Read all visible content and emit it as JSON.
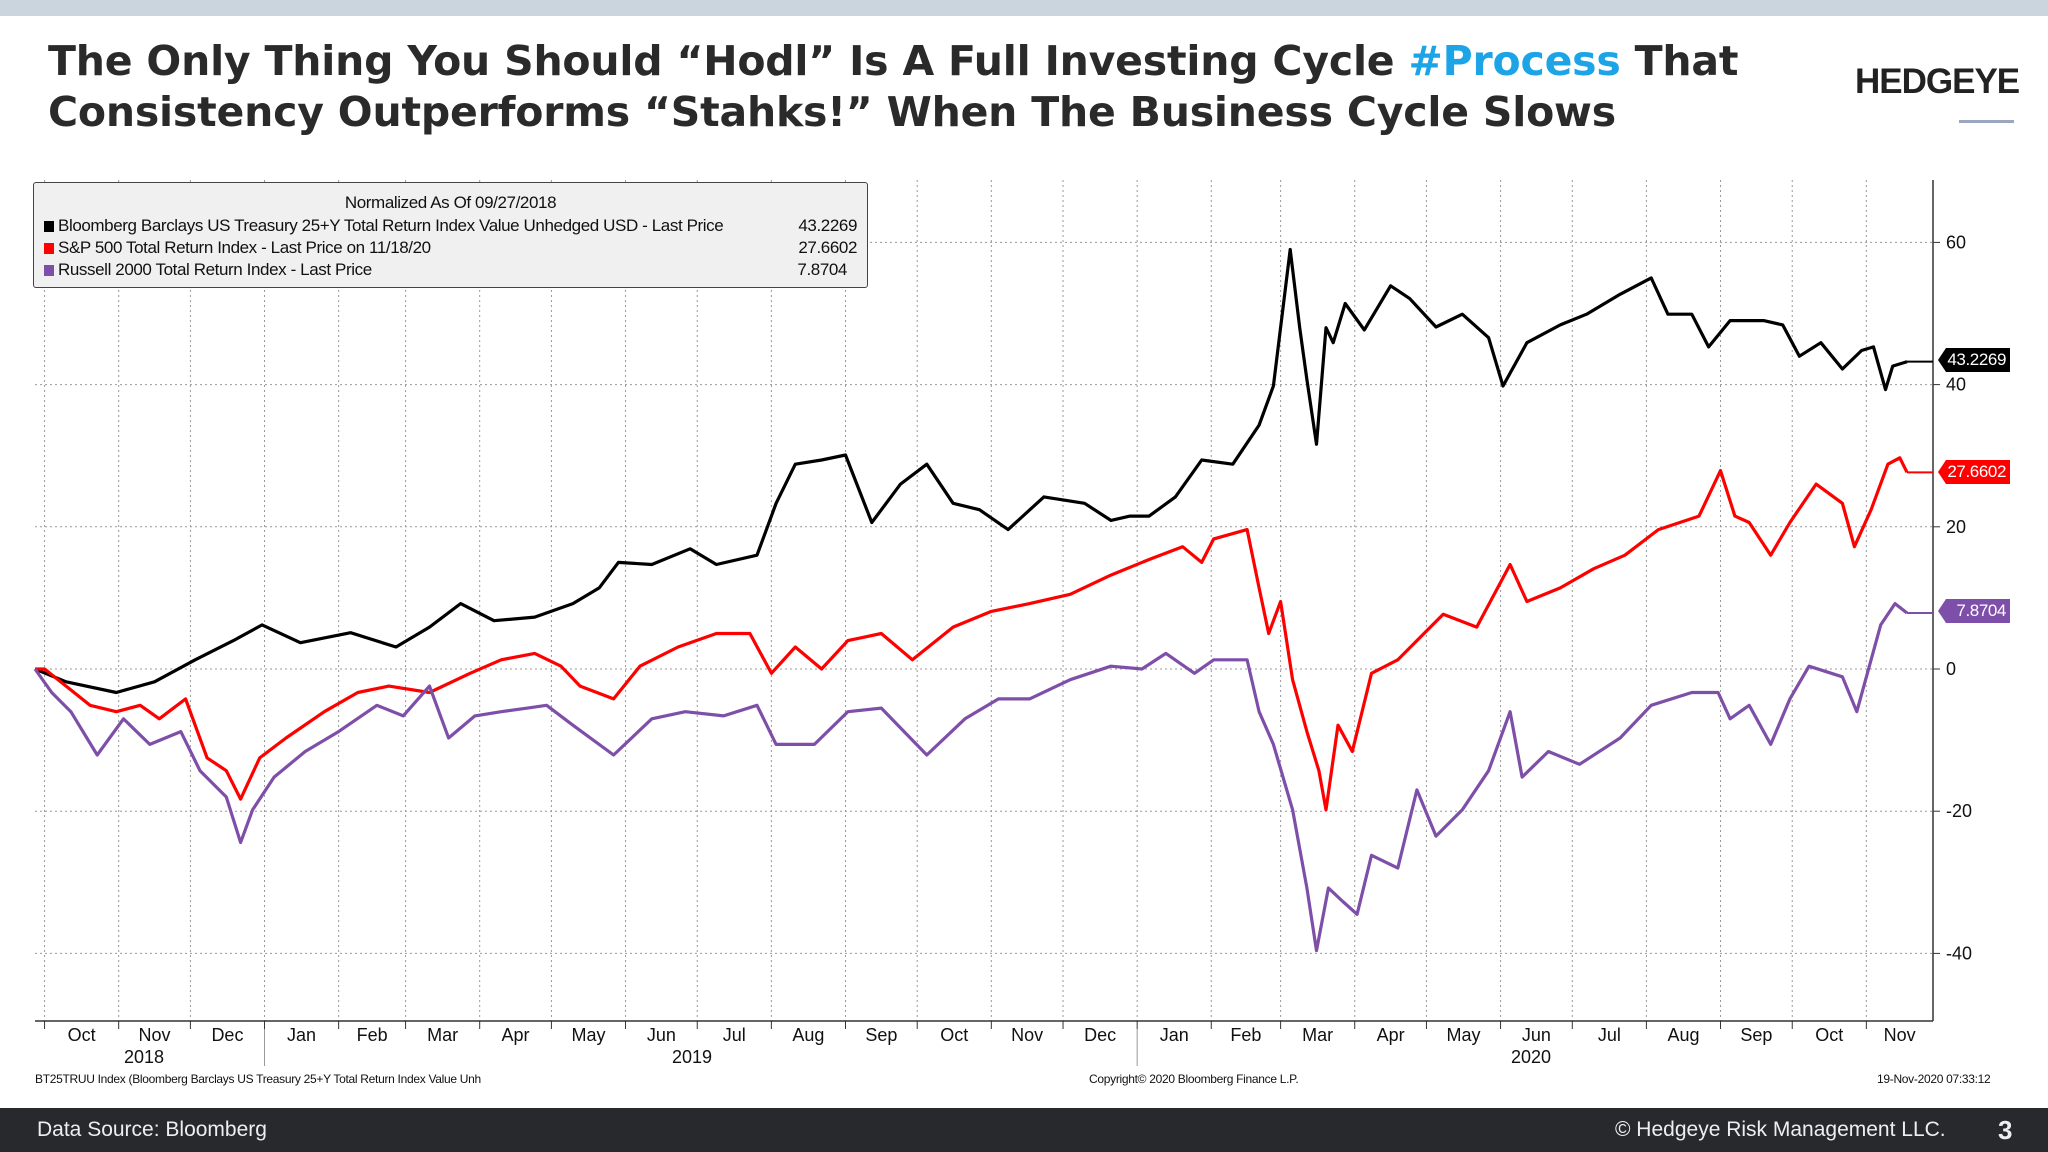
{
  "header": {
    "title_line1_a": "The Only Thing You Should “Hodl” Is A Full Investing Cycle ",
    "title_line1_hashtag": "#Process",
    "title_line1_b": " That",
    "title_line2": "Consistency Outperforms “Stahks!” When The Business Cycle Slows",
    "logo": "HEDGEYE",
    "accent_color": "#1ca4e6"
  },
  "chart_data": {
    "type": "line",
    "legend_title": "Normalized As Of 09/27/2018",
    "legend_placement": "top-left",
    "grid": true,
    "x_range": [
      "2018-09-27",
      "2020-11-18"
    ],
    "ylim": [
      -48,
      70
    ],
    "y_ticks": [
      -40,
      -20,
      0,
      20,
      40,
      60
    ],
    "x_month_labels": [
      {
        "label": "Oct",
        "month": "2018-10"
      },
      {
        "label": "Nov",
        "month": "2018-11"
      },
      {
        "label": "Dec",
        "month": "2018-12"
      },
      {
        "label": "Jan",
        "month": "2019-01"
      },
      {
        "label": "Feb",
        "month": "2019-02"
      },
      {
        "label": "Mar",
        "month": "2019-03"
      },
      {
        "label": "Apr",
        "month": "2019-04"
      },
      {
        "label": "May",
        "month": "2019-05"
      },
      {
        "label": "Jun",
        "month": "2019-06"
      },
      {
        "label": "Jul",
        "month": "2019-07"
      },
      {
        "label": "Aug",
        "month": "2019-08"
      },
      {
        "label": "Sep",
        "month": "2019-09"
      },
      {
        "label": "Oct",
        "month": "2019-10"
      },
      {
        "label": "Nov",
        "month": "2019-11"
      },
      {
        "label": "Dec",
        "month": "2019-12"
      },
      {
        "label": "Jan",
        "month": "2020-01"
      },
      {
        "label": "Feb",
        "month": "2020-02"
      },
      {
        "label": "Mar",
        "month": "2020-03"
      },
      {
        "label": "Apr",
        "month": "2020-04"
      },
      {
        "label": "May",
        "month": "2020-05"
      },
      {
        "label": "Jun",
        "month": "2020-06"
      },
      {
        "label": "Jul",
        "month": "2020-07"
      },
      {
        "label": "Aug",
        "month": "2020-08"
      },
      {
        "label": "Sep",
        "month": "2020-09"
      },
      {
        "label": "Oct",
        "month": "2020-10"
      },
      {
        "label": "Nov",
        "month": "2020-11"
      }
    ],
    "x_year_labels": [
      "2018",
      "2019",
      "2020"
    ],
    "series": [
      {
        "name": "Bloomberg Barclays US Treasury 25+Y Total Return Index Value Unhedged USD - Last Price",
        "last_value": "43.2269",
        "color": "#000000",
        "points": [
          [
            "2018-09-27",
            0
          ],
          [
            "2018-10-10",
            -1.8
          ],
          [
            "2018-10-31",
            -3.3
          ],
          [
            "2018-11-16",
            -1.8
          ],
          [
            "2018-12-03",
            1.3
          ],
          [
            "2018-12-19",
            4
          ],
          [
            "2018-12-31",
            6.2
          ],
          [
            "2019-01-16",
            3.7
          ],
          [
            "2019-02-06",
            5.1
          ],
          [
            "2019-02-25",
            3.1
          ],
          [
            "2019-03-11",
            5.9
          ],
          [
            "2019-03-24",
            9.2
          ],
          [
            "2019-04-07",
            6.8
          ],
          [
            "2019-04-24",
            7.3
          ],
          [
            "2019-05-10",
            9.2
          ],
          [
            "2019-05-21",
            11.4
          ],
          [
            "2019-05-29",
            15
          ],
          [
            "2019-06-12",
            14.7
          ],
          [
            "2019-06-28",
            16.9
          ],
          [
            "2019-07-09",
            14.7
          ],
          [
            "2019-07-26",
            16
          ],
          [
            "2019-08-03",
            23.3
          ],
          [
            "2019-08-11",
            28.8
          ],
          [
            "2019-08-22",
            29.4
          ],
          [
            "2019-09-01",
            30.1
          ],
          [
            "2019-09-12",
            20.6
          ],
          [
            "2019-09-24",
            26
          ],
          [
            "2019-10-05",
            28.8
          ],
          [
            "2019-10-16",
            23.3
          ],
          [
            "2019-10-27",
            22.4
          ],
          [
            "2019-11-08",
            19.6
          ],
          [
            "2019-11-23",
            24.2
          ],
          [
            "2019-12-10",
            23.3
          ],
          [
            "2019-12-21",
            20.9
          ],
          [
            "2019-12-29",
            21.5
          ],
          [
            "2020-01-06",
            21.5
          ],
          [
            "2020-01-17",
            24.2
          ],
          [
            "2020-01-28",
            29.4
          ],
          [
            "2020-02-10",
            28.8
          ],
          [
            "2020-02-21",
            34.3
          ],
          [
            "2020-02-27",
            39.8
          ],
          [
            "2020-03-05",
            59
          ],
          [
            "2020-03-09",
            48
          ],
          [
            "2020-03-12",
            40.7
          ],
          [
            "2020-03-16",
            31.6
          ],
          [
            "2020-03-20",
            48
          ],
          [
            "2020-03-23",
            45.9
          ],
          [
            "2020-03-28",
            51.4
          ],
          [
            "2020-04-05",
            47.7
          ],
          [
            "2020-04-16",
            53.9
          ],
          [
            "2020-04-24",
            52.1
          ],
          [
            "2020-05-05",
            48.1
          ],
          [
            "2020-05-16",
            49.9
          ],
          [
            "2020-05-27",
            46.6
          ],
          [
            "2020-06-02",
            39.8
          ],
          [
            "2020-06-12",
            45.9
          ],
          [
            "2020-06-26",
            48.4
          ],
          [
            "2020-07-07",
            49.9
          ],
          [
            "2020-07-21",
            52.7
          ],
          [
            "2020-08-03",
            55
          ],
          [
            "2020-08-10",
            49.9
          ],
          [
            "2020-08-20",
            49.9
          ],
          [
            "2020-08-27",
            45.3
          ],
          [
            "2020-09-05",
            49
          ],
          [
            "2020-09-19",
            49
          ],
          [
            "2020-09-27",
            48.4
          ],
          [
            "2020-10-04",
            44
          ],
          [
            "2020-10-13",
            45.9
          ],
          [
            "2020-10-22",
            42.2
          ],
          [
            "2020-10-30",
            44.8
          ],
          [
            "2020-11-04",
            45.3
          ],
          [
            "2020-11-09",
            39.3
          ],
          [
            "2020-11-12",
            42.6
          ],
          [
            "2020-11-18",
            43.2269
          ]
        ]
      },
      {
        "name": "S&P 500 Total Return Index - Last Price on 11/18/20",
        "last_value": "27.6602",
        "color": "#ff0000",
        "points": [
          [
            "2018-09-27",
            0
          ],
          [
            "2018-10-01",
            0
          ],
          [
            "2018-10-10",
            -2.4
          ],
          [
            "2018-10-20",
            -5.1
          ],
          [
            "2018-10-31",
            -6
          ],
          [
            "2018-11-10",
            -5.1
          ],
          [
            "2018-11-18",
            -7
          ],
          [
            "2018-11-29",
            -4.2
          ],
          [
            "2018-12-08",
            -12.5
          ],
          [
            "2018-12-16",
            -14.3
          ],
          [
            "2018-12-22",
            -18.3
          ],
          [
            "2018-12-30",
            -12.5
          ],
          [
            "2019-01-10",
            -9.7
          ],
          [
            "2019-01-26",
            -6
          ],
          [
            "2019-02-09",
            -3.3
          ],
          [
            "2019-02-22",
            -2.4
          ],
          [
            "2019-03-11",
            -3.3
          ],
          [
            "2019-03-28",
            -0.6
          ],
          [
            "2019-04-10",
            1.3
          ],
          [
            "2019-04-24",
            2.2
          ],
          [
            "2019-05-05",
            0.4
          ],
          [
            "2019-05-13",
            -2.4
          ],
          [
            "2019-05-27",
            -4.2
          ],
          [
            "2019-06-07",
            0.4
          ],
          [
            "2019-06-23",
            3.1
          ],
          [
            "2019-07-09",
            5
          ],
          [
            "2019-07-23",
            5
          ],
          [
            "2019-08-01",
            -0.6
          ],
          [
            "2019-08-11",
            3.1
          ],
          [
            "2019-08-22",
            0
          ],
          [
            "2019-09-02",
            4
          ],
          [
            "2019-09-16",
            5
          ],
          [
            "2019-09-29",
            1.3
          ],
          [
            "2019-10-16",
            5.9
          ],
          [
            "2019-11-01",
            8.1
          ],
          [
            "2019-11-17",
            9.2
          ],
          [
            "2019-12-04",
            10.5
          ],
          [
            "2019-12-21",
            13.2
          ],
          [
            "2020-01-06",
            15.4
          ],
          [
            "2020-01-20",
            17.2
          ],
          [
            "2020-01-28",
            15
          ],
          [
            "2020-02-02",
            18.3
          ],
          [
            "2020-02-16",
            19.6
          ],
          [
            "2020-02-21",
            11.4
          ],
          [
            "2020-02-25",
            5
          ],
          [
            "2020-03-01",
            9.5
          ],
          [
            "2020-03-06",
            -1.5
          ],
          [
            "2020-03-12",
            -8.8
          ],
          [
            "2020-03-17",
            -14.3
          ],
          [
            "2020-03-20",
            -19.8
          ],
          [
            "2020-03-25",
            -7.9
          ],
          [
            "2020-03-31",
            -11.6
          ],
          [
            "2020-04-08",
            -0.6
          ],
          [
            "2020-04-19",
            1.3
          ],
          [
            "2020-04-27",
            4
          ],
          [
            "2020-05-08",
            7.7
          ],
          [
            "2020-05-22",
            5.9
          ],
          [
            "2020-06-05",
            14.7
          ],
          [
            "2020-06-12",
            9.5
          ],
          [
            "2020-06-26",
            11.4
          ],
          [
            "2020-07-10",
            14.1
          ],
          [
            "2020-07-23",
            16
          ],
          [
            "2020-08-06",
            19.6
          ],
          [
            "2020-08-23",
            21.5
          ],
          [
            "2020-09-01",
            27.9
          ],
          [
            "2020-09-07",
            21.5
          ],
          [
            "2020-09-13",
            20.6
          ],
          [
            "2020-09-22",
            16
          ],
          [
            "2020-09-30",
            20.6
          ],
          [
            "2020-10-11",
            26
          ],
          [
            "2020-10-22",
            23.3
          ],
          [
            "2020-10-27",
            17.2
          ],
          [
            "2020-11-03",
            22.4
          ],
          [
            "2020-11-10",
            28.8
          ],
          [
            "2020-11-15",
            29.7
          ],
          [
            "2020-11-18",
            27.6602
          ]
        ]
      },
      {
        "name": "Russell 2000 Total Return Index - Last Price",
        "last_value": "7.8704",
        "color": "#7e4fa8",
        "points": [
          [
            "2018-09-27",
            0
          ],
          [
            "2018-10-04",
            -3.3
          ],
          [
            "2018-10-12",
            -6
          ],
          [
            "2018-10-23",
            -12.1
          ],
          [
            "2018-11-03",
            -7
          ],
          [
            "2018-11-14",
            -10.6
          ],
          [
            "2018-11-27",
            -8.8
          ],
          [
            "2018-12-05",
            -14.3
          ],
          [
            "2018-12-16",
            -18
          ],
          [
            "2018-12-22",
            -24.4
          ],
          [
            "2018-12-27",
            -19.8
          ],
          [
            "2019-01-05",
            -15.2
          ],
          [
            "2019-01-18",
            -11.6
          ],
          [
            "2019-02-01",
            -8.8
          ],
          [
            "2019-02-17",
            -5.1
          ],
          [
            "2019-02-28",
            -6.6
          ],
          [
            "2019-03-11",
            -2.4
          ],
          [
            "2019-03-19",
            -9.7
          ],
          [
            "2019-03-30",
            -6.6
          ],
          [
            "2019-04-10",
            -6
          ],
          [
            "2019-04-21",
            -5.5
          ],
          [
            "2019-04-29",
            -5.1
          ],
          [
            "2019-05-10",
            -7.9
          ],
          [
            "2019-05-27",
            -12.1
          ],
          [
            "2019-06-12",
            -7
          ],
          [
            "2019-06-26",
            -6
          ],
          [
            "2019-07-12",
            -6.6
          ],
          [
            "2019-07-26",
            -5.1
          ],
          [
            "2019-08-03",
            -10.6
          ],
          [
            "2019-08-19",
            -10.6
          ],
          [
            "2019-09-02",
            -6
          ],
          [
            "2019-09-16",
            -5.5
          ],
          [
            "2019-10-05",
            -12.1
          ],
          [
            "2019-10-21",
            -7
          ],
          [
            "2019-11-04",
            -4.2
          ],
          [
            "2019-11-17",
            -4.2
          ],
          [
            "2019-12-04",
            -1.5
          ],
          [
            "2019-12-21",
            0.4
          ],
          [
            "2020-01-03",
            0
          ],
          [
            "2020-01-13",
            2.2
          ],
          [
            "2020-01-25",
            -0.6
          ],
          [
            "2020-02-02",
            1.3
          ],
          [
            "2020-02-16",
            1.3
          ],
          [
            "2020-02-21",
            -6
          ],
          [
            "2020-02-27",
            -10.6
          ],
          [
            "2020-03-06",
            -19.8
          ],
          [
            "2020-03-12",
            -30.8
          ],
          [
            "2020-03-16",
            -39.6
          ],
          [
            "2020-03-21",
            -30.8
          ],
          [
            "2020-03-27",
            -32.7
          ],
          [
            "2020-04-02",
            -34.5
          ],
          [
            "2020-04-08",
            -26.2
          ],
          [
            "2020-04-19",
            -28
          ],
          [
            "2020-04-27",
            -17
          ],
          [
            "2020-05-05",
            -23.5
          ],
          [
            "2020-05-16",
            -19.8
          ],
          [
            "2020-05-27",
            -14.3
          ],
          [
            "2020-06-05",
            -6
          ],
          [
            "2020-06-10",
            -15.2
          ],
          [
            "2020-06-21",
            -11.6
          ],
          [
            "2020-07-04",
            -13.4
          ],
          [
            "2020-07-21",
            -9.7
          ],
          [
            "2020-08-03",
            -5.1
          ],
          [
            "2020-08-20",
            -3.3
          ],
          [
            "2020-08-31",
            -3.3
          ],
          [
            "2020-09-05",
            -7
          ],
          [
            "2020-09-13",
            -5.1
          ],
          [
            "2020-09-22",
            -10.6
          ],
          [
            "2020-09-30",
            -4.2
          ],
          [
            "2020-10-08",
            0.4
          ],
          [
            "2020-10-22",
            -1.1
          ],
          [
            "2020-10-28",
            -6
          ],
          [
            "2020-11-07",
            6.2
          ],
          [
            "2020-11-13",
            9.2
          ],
          [
            "2020-11-18",
            7.8704
          ]
        ]
      }
    ]
  },
  "chart_footer": {
    "left": "BT25TRUU Index (Bloomberg Barclays US Treasury 25+Y Total Return Index Value Unh",
    "center": "Copyright© 2020 Bloomberg Finance L.P.",
    "right": "19-Nov-2020 07:33:12"
  },
  "footer": {
    "source": "Data Source: Bloomberg",
    "copyright": "© Hedgeye Risk Management LLC.",
    "page": "3"
  }
}
